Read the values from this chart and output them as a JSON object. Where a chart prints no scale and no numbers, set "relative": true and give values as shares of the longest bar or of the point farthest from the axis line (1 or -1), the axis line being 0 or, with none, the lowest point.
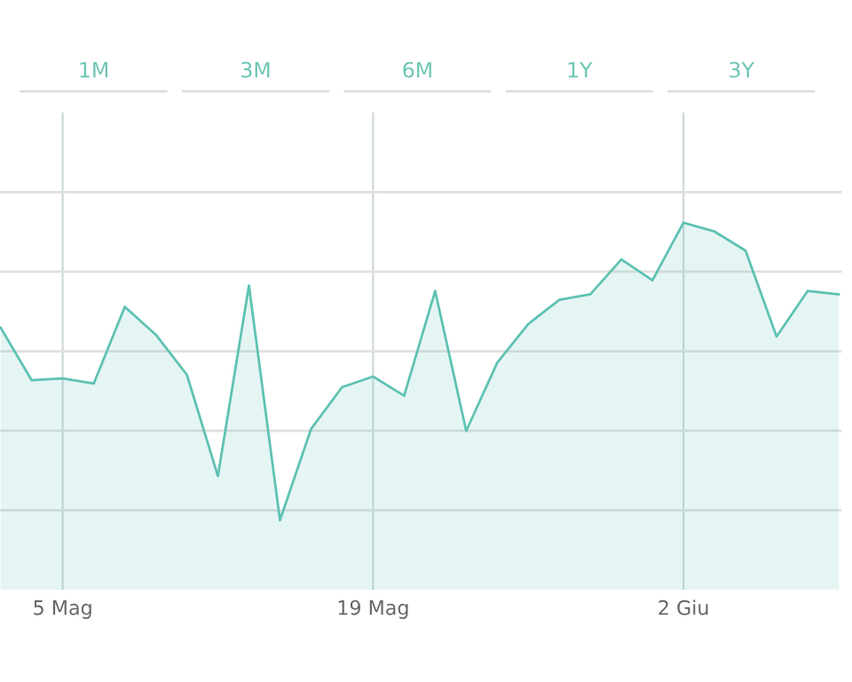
{
  "chart_data": {
    "type": "area",
    "relative": true,
    "grid": true,
    "categories": [
      null,
      null,
      "5 Mag",
      null,
      null,
      null,
      null,
      null,
      null,
      null,
      null,
      null,
      "19 Mag",
      null,
      null,
      null,
      null,
      null,
      null,
      null,
      null,
      null,
      "2 Giu",
      null,
      null,
      null,
      null,
      null
    ],
    "series": [
      {
        "color": "#5fc2b3",
        "values": [
          0.714,
          0.571,
          0.576,
          0.562,
          0.771,
          0.695,
          0.586,
          0.31,
          0.829,
          0.19,
          0.438,
          0.552,
          0.581,
          0.529,
          0.814,
          0.433,
          0.619,
          0.724,
          0.79,
          0.805,
          0.9,
          0.843,
          1,
          0.976,
          0.924,
          0.69,
          0.814,
          0.805
        ]
      }
    ],
    "annotations": [
      "1M",
      "3M",
      "6M",
      "1Y",
      "3Y"
    ]
  }
}
